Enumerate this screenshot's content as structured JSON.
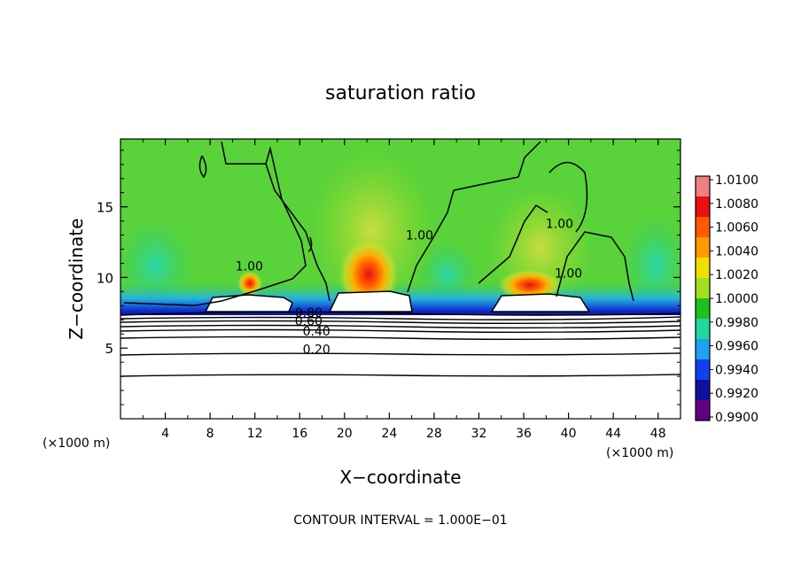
{
  "chart_data": {
    "type": "heatmap",
    "title": "saturation ratio",
    "xlabel": "X−coordinate",
    "ylabel": "Z−coordinate",
    "x_unit_left": "(×1000 m)",
    "x_unit_right": "(×1000 m)",
    "xlim": [
      0,
      50
    ],
    "ylim": [
      0,
      19.8
    ],
    "x_ticks": [
      4,
      8,
      12,
      16,
      20,
      24,
      28,
      32,
      36,
      40,
      44,
      48
    ],
    "y_ticks": [
      5,
      10,
      15
    ],
    "footer": "CONTOUR INTERVAL = 1.000E−01",
    "colorbar": {
      "levels": [
        1.01,
        1.008,
        1.006,
        1.004,
        1.002,
        1.0,
        0.998,
        0.996,
        0.994,
        0.992,
        0.99
      ],
      "labels": [
        "1.0100",
        "1.0080",
        "1.0060",
        "1.0040",
        "1.0020",
        "1.0000",
        "0.9980",
        "0.9960",
        "0.9940",
        "0.9920",
        "0.9900"
      ],
      "colors": [
        "#f08080",
        "#e81010",
        "#ff5a00",
        "#ff9a00",
        "#f0e000",
        "#a0e020",
        "#20c020",
        "#20d8a0",
        "#20a0f0",
        "#1040f0",
        "#1010a0",
        "#600080"
      ]
    },
    "contour_labels": [
      {
        "text": "1.00",
        "x": 11.5,
        "z": 10.5
      },
      {
        "text": "1.00",
        "x": 26.7,
        "z": 12.7
      },
      {
        "text": "1.00",
        "x": 39.2,
        "z": 13.5
      },
      {
        "text": "1.00",
        "x": 40.0,
        "z": 10.0
      },
      {
        "text": "0.80",
        "x": 16.8,
        "z": 7.2
      },
      {
        "text": "0.60",
        "x": 16.8,
        "z": 6.6
      },
      {
        "text": "0.40",
        "x": 17.5,
        "z": 5.9
      },
      {
        "text": "0.20",
        "x": 17.5,
        "z": 4.6
      }
    ],
    "contour_levels_below": [
      0.2,
      0.4,
      0.6,
      0.8,
      0.9
    ],
    "warm_cores": [
      {
        "x": 21.5,
        "z": 10.0,
        "peak": 1.0065
      },
      {
        "x": 36.5,
        "z": 9.3,
        "peak": 1.0055
      },
      {
        "x": 11.5,
        "z": 9.3,
        "peak": 1.004
      }
    ],
    "dry_edge": {
      "z": 7.7,
      "value": 0.9925
    },
    "cloud_regions": [
      {
        "x": [
          7.8,
          15.8
        ],
        "z": [
          7.5,
          9.0
        ]
      },
      {
        "x": [
          18.8,
          26.0
        ],
        "z": [
          7.5,
          9.0
        ]
      },
      {
        "x": [
          33.5,
          42.0
        ],
        "z": [
          7.5,
          9.0
        ]
      }
    ]
  }
}
